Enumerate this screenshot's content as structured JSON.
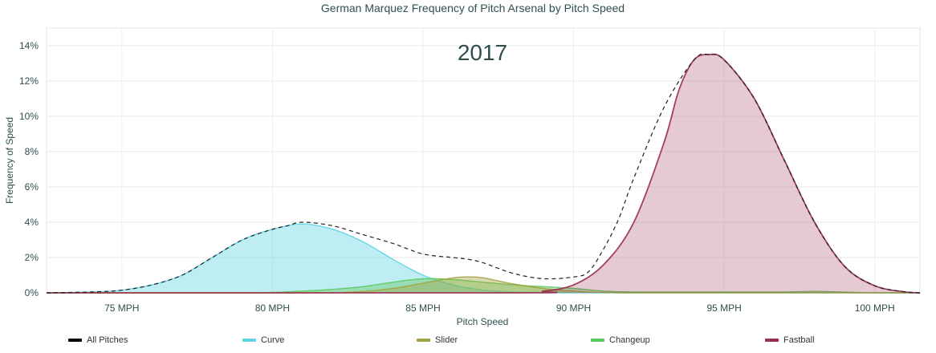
{
  "chart_data": {
    "type": "area",
    "title": "German Marquez Frequency of Pitch Arsenal by Pitch Speed",
    "annotation": "2017",
    "xlabel": "Pitch Speed",
    "ylabel": "Frequency of Speed",
    "xlim": [
      72.5,
      101.5
    ],
    "ylim": [
      0,
      15
    ],
    "x_ticks": [
      75,
      80,
      85,
      90,
      95,
      100
    ],
    "x_tick_labels": [
      "75 MPH",
      "80 MPH",
      "85 MPH",
      "90 MPH",
      "95 MPH",
      "100 MPH"
    ],
    "y_ticks": [
      0,
      2,
      4,
      6,
      8,
      10,
      12,
      14
    ],
    "y_tick_labels": [
      "0%",
      "2%",
      "4%",
      "6%",
      "8%",
      "10%",
      "12%",
      "14%"
    ],
    "grid": true,
    "legend_position": "bottom",
    "series": [
      {
        "name": "All Pitches",
        "color": "#000000",
        "style": "dashed-line",
        "x": [
          72.5,
          74,
          75,
          76,
          77,
          78,
          79,
          80,
          80.5,
          81,
          82,
          83,
          84,
          85,
          86,
          86.5,
          87,
          88,
          89,
          90,
          90.5,
          91,
          91.5,
          92,
          93,
          94,
          94.5,
          95,
          96,
          97,
          98,
          99,
          100,
          101,
          101.5
        ],
        "values": [
          0,
          0.05,
          0.15,
          0.45,
          1.0,
          2.0,
          3.0,
          3.6,
          3.8,
          4.0,
          3.8,
          3.3,
          2.8,
          2.2,
          2.0,
          1.9,
          1.7,
          1.1,
          0.8,
          0.9,
          1.2,
          2.5,
          4.2,
          6.5,
          10.5,
          13.2,
          13.5,
          13.2,
          11.0,
          7.5,
          4.0,
          1.5,
          0.4,
          0.05,
          0
        ]
      },
      {
        "name": "Curve",
        "color": "#5fd3e4",
        "style": "area",
        "x": [
          72.5,
          74,
          75,
          76,
          77,
          78,
          79,
          80,
          81,
          82,
          83,
          84,
          85,
          86,
          87,
          88,
          89,
          90,
          101.5
        ],
        "values": [
          0,
          0.05,
          0.15,
          0.45,
          1.0,
          2.0,
          3.0,
          3.6,
          3.9,
          3.6,
          2.9,
          1.9,
          1.0,
          0.45,
          0.15,
          0.05,
          0.02,
          0,
          0
        ]
      },
      {
        "name": "Slider",
        "color": "#a2a33e",
        "style": "area",
        "x": [
          72.5,
          81,
          83,
          84,
          85,
          86,
          86.5,
          87,
          88,
          89,
          90,
          92,
          101.5
        ],
        "values": [
          0,
          0,
          0.08,
          0.25,
          0.55,
          0.85,
          0.9,
          0.85,
          0.5,
          0.25,
          0.1,
          0,
          0
        ]
      },
      {
        "name": "Changeup",
        "color": "#5cc95c",
        "style": "area",
        "x": [
          72.5,
          79,
          81,
          82,
          83,
          84,
          85,
          86,
          87,
          88,
          89,
          90,
          91,
          92,
          94,
          97,
          98,
          100,
          101.5
        ],
        "values": [
          0,
          0,
          0.1,
          0.2,
          0.35,
          0.6,
          0.8,
          0.75,
          0.6,
          0.45,
          0.35,
          0.25,
          0.1,
          0.05,
          0.05,
          0.05,
          0.08,
          0,
          0
        ]
      },
      {
        "name": "Fastball",
        "color": "#9b2c4f",
        "style": "area",
        "x": [
          72.5,
          88,
          89,
          90,
          91,
          92,
          93,
          93.5,
          94,
          94.5,
          95,
          96,
          97,
          98,
          99,
          100,
          101,
          101.5
        ],
        "values": [
          0,
          0,
          0.1,
          0.45,
          1.6,
          4.0,
          8.5,
          11.5,
          13.2,
          13.5,
          13.2,
          11.0,
          7.5,
          4.0,
          1.5,
          0.4,
          0.05,
          0
        ]
      }
    ]
  }
}
